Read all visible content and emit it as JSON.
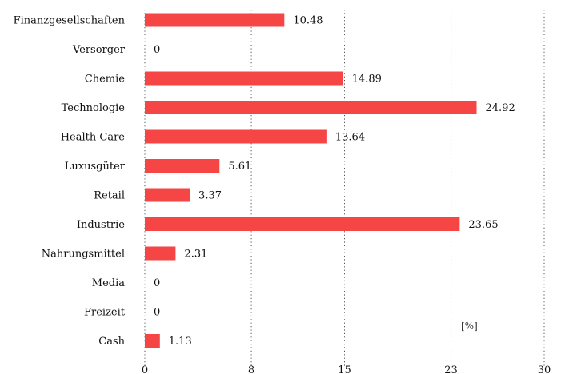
{
  "chart_data": {
    "type": "bar",
    "orientation": "horizontal",
    "categories": [
      "Finanzgesellschaften",
      "Versorger",
      "Chemie",
      "Technologie",
      "Health Care",
      "Luxusgüter",
      "Retail",
      "Industrie",
      "Nahrungsmittel",
      "Media",
      "Freizeit",
      "Cash"
    ],
    "values": [
      10.48,
      0,
      14.89,
      24.92,
      13.64,
      5.61,
      3.37,
      23.65,
      2.31,
      0,
      0,
      1.13
    ],
    "value_labels": [
      "10.48",
      "0",
      "14.89",
      "24.92",
      "13.64",
      "5.61",
      "3.37",
      "23.65",
      "2.31",
      "0",
      "0",
      "1.13"
    ],
    "x_ticks": [
      0,
      8,
      15,
      23,
      30
    ],
    "x_tick_labels": [
      "0",
      "8",
      "15",
      "23",
      "30"
    ],
    "xlim": [
      0,
      30
    ],
    "unit_label": "[%]",
    "bar_color": "#f64545",
    "grid": "vertical dotted"
  }
}
